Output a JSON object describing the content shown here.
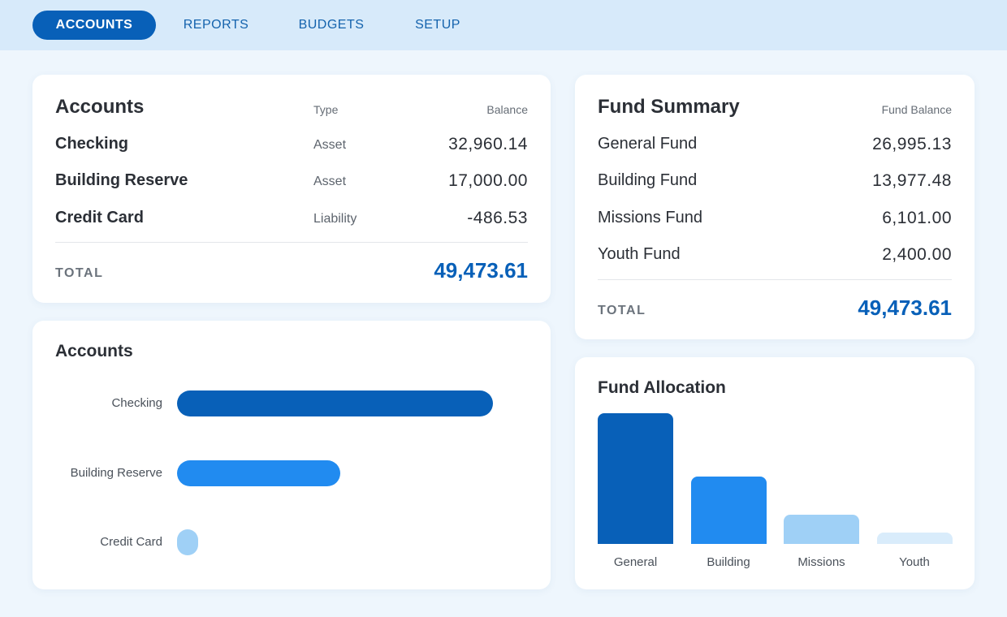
{
  "nav": {
    "tabs": [
      {
        "label": "ACCOUNTS",
        "active": true
      },
      {
        "label": "REPORTS",
        "active": false
      },
      {
        "label": "BUDGETS",
        "active": false
      },
      {
        "label": "SETUP",
        "active": false
      }
    ]
  },
  "accounts_card": {
    "title": "Accounts",
    "col_type": "Type",
    "col_balance": "Balance",
    "rows": [
      {
        "name": "Checking",
        "type": "Asset",
        "balance": "32,960.14"
      },
      {
        "name": "Building Reserve",
        "type": "Asset",
        "balance": "17,000.00"
      },
      {
        "name": "Credit Card",
        "type": "Liability",
        "balance": "-486.53"
      }
    ],
    "total_label": "TOTAL",
    "total_value": "49,473.61"
  },
  "fund_card": {
    "title": "Fund Summary",
    "col_balance": "Fund Balance",
    "rows": [
      {
        "name": "General Fund",
        "balance": "26,995.13"
      },
      {
        "name": "Building Fund",
        "balance": "13,977.48"
      },
      {
        "name": "Missions Fund",
        "balance": "6,101.00"
      },
      {
        "name": "Youth Fund",
        "balance": "2,400.00"
      }
    ],
    "total_label": "TOTAL",
    "total_value": "49,473.61"
  },
  "colors": {
    "accent": "#0860b8",
    "bar_dark": "#0860b8",
    "bar_mid": "#218bf0",
    "bar_light": "#9fd0f6",
    "bar_pale": "#d9ecfb"
  },
  "chart_data": [
    {
      "type": "bar",
      "orientation": "horizontal",
      "title": "Accounts",
      "categories": [
        "Checking",
        "Building Reserve",
        "Credit Card"
      ],
      "values": [
        32960.14,
        17000.0,
        486.53
      ],
      "colors": [
        "#0860b8",
        "#218bf0",
        "#9fd0f6"
      ],
      "grid": false,
      "legend": "none"
    },
    {
      "type": "bar",
      "orientation": "vertical",
      "title": "Fund Allocation",
      "categories": [
        "General",
        "Building",
        "Missions",
        "Youth"
      ],
      "values": [
        26995.13,
        13977.48,
        6101.0,
        2400.0
      ],
      "colors": [
        "#0860b8",
        "#218bf0",
        "#9fd0f6",
        "#d9ecfb"
      ],
      "grid": false,
      "legend": "none"
    }
  ]
}
